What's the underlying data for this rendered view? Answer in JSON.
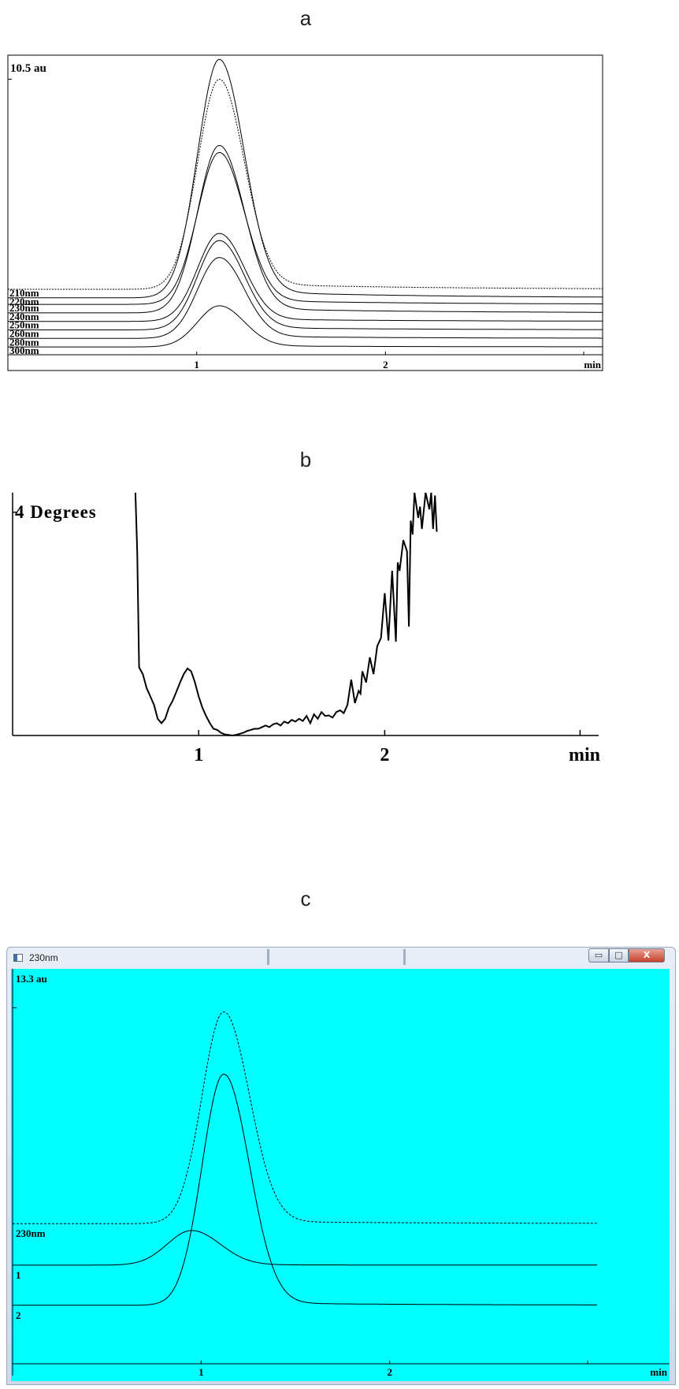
{
  "panels": [
    {
      "letter": "a"
    },
    {
      "letter": "b"
    },
    {
      "letter": "c"
    }
  ],
  "window": {
    "title": "230nm",
    "background_color": "#00FFFF",
    "controls": {
      "minimize": "▭",
      "maximize": "□",
      "close": "X"
    }
  },
  "chart_data": [
    {
      "type": "line",
      "panel": "a",
      "ylabel": "10.5 au",
      "xlabel": "min",
      "xticks": [
        1,
        2
      ],
      "xlim": [
        0,
        3.15
      ],
      "ylim": [
        0,
        10.5
      ],
      "peak_time": 1.12,
      "series": [
        {
          "name": "210nm",
          "baseline": 2.25,
          "peak_height": 7.4,
          "style": "dashed"
        },
        {
          "name": "220nm",
          "baseline": 1.95,
          "peak_height": 8.4
        },
        {
          "name": "230nm",
          "baseline": 1.72,
          "peak_height": 5.35
        },
        {
          "name": "240nm",
          "baseline": 1.42,
          "peak_height": 5.9
        },
        {
          "name": "250nm",
          "baseline": 1.12,
          "peak_height": 3.1
        },
        {
          "name": "260nm",
          "baseline": 0.82,
          "peak_height": 3.15
        },
        {
          "name": "280nm",
          "baseline": 0.52,
          "peak_height": 2.85
        },
        {
          "name": "300nm",
          "baseline": 0.22,
          "peak_height": 1.45
        }
      ]
    },
    {
      "type": "line",
      "panel": "b",
      "ylabel": "4 Degrees",
      "xlabel": "min",
      "xticks": [
        1,
        2
      ],
      "xlim": [
        0,
        3.15
      ],
      "ylim": [
        0,
        4.35
      ],
      "series": [
        {
          "x": [
            0.66,
            0.67,
            0.68,
            0.7,
            0.72,
            0.74,
            0.76,
            0.78,
            0.8,
            0.82,
            0.84,
            0.86,
            0.88,
            0.9,
            0.92,
            0.94,
            0.96,
            0.98,
            1.0,
            1.02,
            1.04,
            1.06,
            1.08,
            1.1,
            1.12,
            1.14,
            1.16,
            1.18,
            1.2,
            1.22,
            1.24,
            1.26,
            1.28,
            1.3,
            1.32,
            1.34,
            1.36,
            1.38,
            1.4,
            1.42,
            1.44,
            1.46,
            1.48,
            1.5,
            1.52,
            1.54,
            1.56,
            1.58,
            1.6,
            1.62,
            1.64,
            1.66,
            1.68,
            1.7,
            1.72,
            1.74,
            1.76,
            1.78,
            1.8,
            1.82,
            1.84,
            1.86,
            1.87,
            1.88,
            1.9,
            1.92,
            1.94,
            1.96,
            1.98,
            2.0,
            2.02,
            2.04,
            2.06,
            2.07,
            2.08,
            2.1,
            2.12,
            2.13,
            2.14,
            2.15,
            2.16,
            2.18,
            2.19,
            2.2,
            2.22,
            2.24,
            2.25,
            2.26,
            2.27,
            2.28
          ],
          "y": [
            4.35,
            3.3,
            1.22,
            1.1,
            0.85,
            0.7,
            0.55,
            0.3,
            0.22,
            0.3,
            0.5,
            0.62,
            0.78,
            0.95,
            1.1,
            1.2,
            1.15,
            0.95,
            0.7,
            0.5,
            0.35,
            0.22,
            0.12,
            0.1,
            0.05,
            0.02,
            0.01,
            0.0,
            0.01,
            0.03,
            0.05,
            0.08,
            0.1,
            0.12,
            0.12,
            0.15,
            0.18,
            0.15,
            0.2,
            0.22,
            0.18,
            0.25,
            0.22,
            0.28,
            0.25,
            0.3,
            0.26,
            0.35,
            0.22,
            0.38,
            0.3,
            0.42,
            0.35,
            0.36,
            0.32,
            0.42,
            0.45,
            0.4,
            0.55,
            1.0,
            0.58,
            0.8,
            0.75,
            1.15,
            0.95,
            1.4,
            1.1,
            1.6,
            1.75,
            2.55,
            1.7,
            2.95,
            1.68,
            3.1,
            2.95,
            3.5,
            3.3,
            1.95,
            3.85,
            3.6,
            4.35,
            3.9,
            4.1,
            3.7,
            4.35,
            4.05,
            4.35,
            3.7,
            4.3,
            3.65
          ]
        }
      ]
    },
    {
      "type": "line",
      "panel": "c",
      "ylabel": "13.3 au",
      "xlabel": "min",
      "xticks": [
        1,
        2
      ],
      "xlim": [
        0,
        3.1
      ],
      "ylim": [
        0,
        13.3
      ],
      "series": [
        {
          "name": "230nm",
          "baseline": 4.95,
          "peak_time": 1.12,
          "peak_height": 7.65,
          "style": "dashed"
        },
        {
          "name": "1",
          "baseline": 3.45,
          "peak_time": 0.95,
          "peak_height": 1.25
        },
        {
          "name": "2",
          "baseline": 2.0,
          "peak_time": 1.12,
          "peak_height": 8.35
        }
      ]
    }
  ]
}
